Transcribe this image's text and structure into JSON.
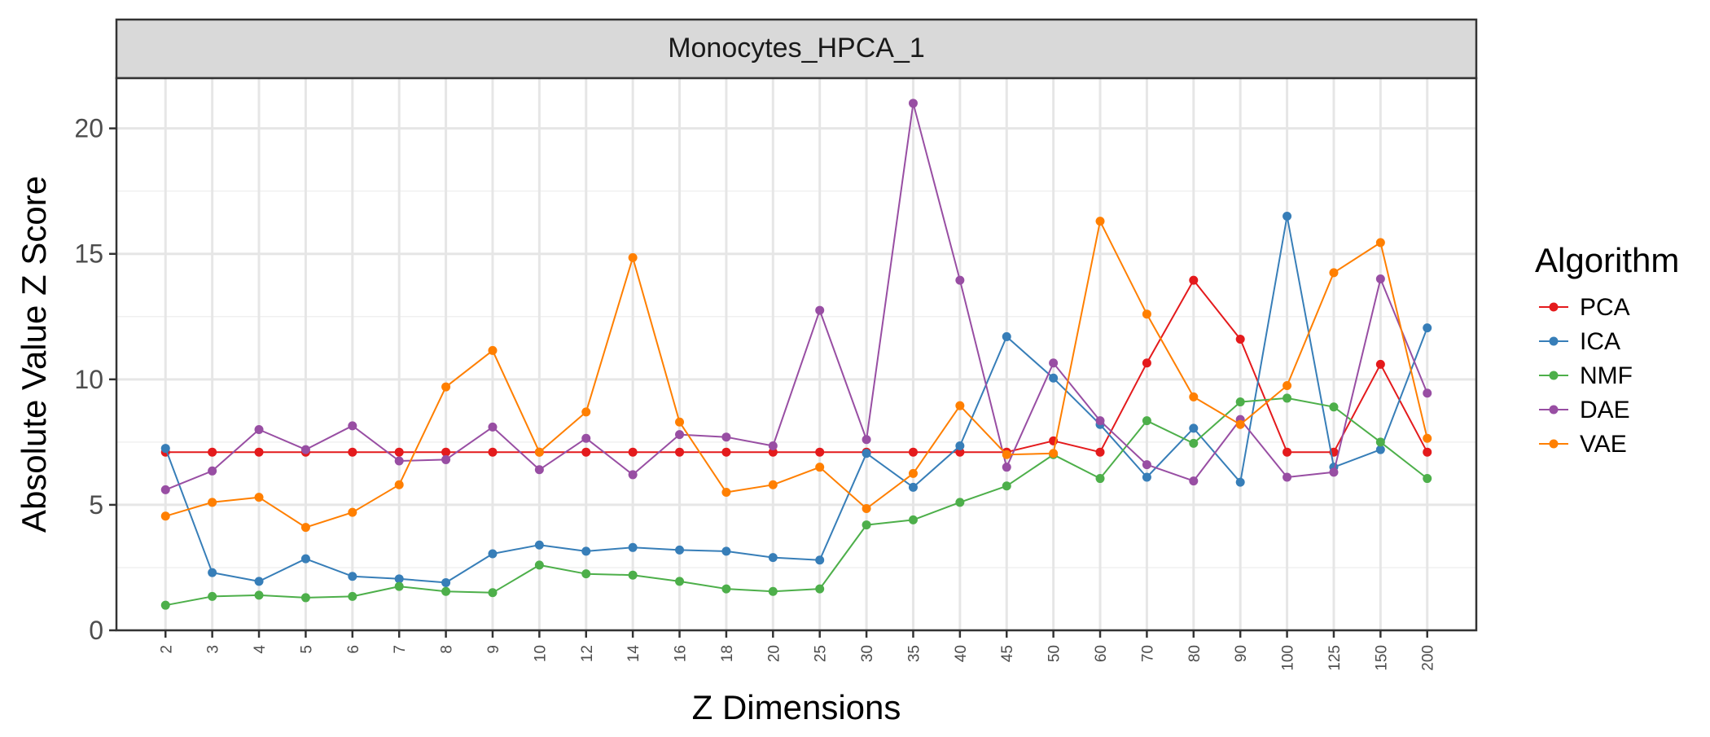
{
  "chart_data": {
    "type": "line",
    "facet_title": "Monocytes_HPCA_1",
    "xlabel": "Z Dimensions",
    "ylabel": "Absolute Value Z Score",
    "ylim": [
      0,
      22
    ],
    "yticks": [
      0,
      5,
      10,
      15,
      20
    ],
    "grid": true,
    "legend_title": "Algorithm",
    "legend_position": "right",
    "categories": [
      "2",
      "3",
      "4",
      "5",
      "6",
      "7",
      "8",
      "9",
      "10",
      "12",
      "14",
      "16",
      "18",
      "20",
      "25",
      "30",
      "35",
      "40",
      "45",
      "50",
      "60",
      "70",
      "80",
      "90",
      "100",
      "125",
      "150",
      "200"
    ],
    "series": [
      {
        "name": "PCA",
        "color": "#e41a1c",
        "values": [
          7.1,
          7.1,
          7.1,
          7.1,
          7.1,
          7.1,
          7.1,
          7.1,
          7.1,
          7.1,
          7.1,
          7.1,
          7.1,
          7.1,
          7.1,
          7.1,
          7.1,
          7.1,
          7.1,
          7.55,
          7.1,
          10.65,
          13.95,
          11.6,
          7.1,
          7.1,
          10.6,
          7.1
        ]
      },
      {
        "name": "ICA",
        "color": "#377eb8",
        "values": [
          7.25,
          2.3,
          1.95,
          2.85,
          2.15,
          2.05,
          1.9,
          3.05,
          3.4,
          3.15,
          3.3,
          3.2,
          3.15,
          2.9,
          2.8,
          7.05,
          5.7,
          7.35,
          11.7,
          10.05,
          8.2,
          6.1,
          8.05,
          5.9,
          16.5,
          6.5,
          7.2,
          12.05
        ]
      },
      {
        "name": "NMF",
        "color": "#4daf4a",
        "values": [
          1.0,
          1.35,
          1.4,
          1.3,
          1.35,
          1.75,
          1.55,
          1.5,
          2.6,
          2.25,
          2.2,
          1.95,
          1.65,
          1.55,
          1.65,
          4.2,
          4.4,
          5.1,
          5.75,
          7.0,
          6.05,
          8.35,
          7.45,
          9.1,
          9.25,
          8.9,
          7.5,
          6.05
        ]
      },
      {
        "name": "DAE",
        "color": "#984ea3",
        "values": [
          5.6,
          6.35,
          8.0,
          7.2,
          8.15,
          6.75,
          6.8,
          8.1,
          6.4,
          7.65,
          6.2,
          7.8,
          7.7,
          7.35,
          12.75,
          7.6,
          21.0,
          13.95,
          6.5,
          10.65,
          8.35,
          6.6,
          5.95,
          8.4,
          6.1,
          6.3,
          14.0,
          9.45
        ]
      },
      {
        "name": "VAE",
        "color": "#ff7f00",
        "values": [
          4.55,
          5.1,
          5.3,
          4.1,
          4.7,
          5.8,
          9.7,
          11.15,
          7.1,
          8.7,
          14.85,
          8.3,
          5.5,
          5.8,
          6.5,
          4.85,
          6.25,
          8.95,
          7.0,
          7.05,
          16.3,
          12.6,
          9.3,
          8.2,
          9.75,
          14.25,
          15.45,
          7.65
        ]
      }
    ]
  }
}
